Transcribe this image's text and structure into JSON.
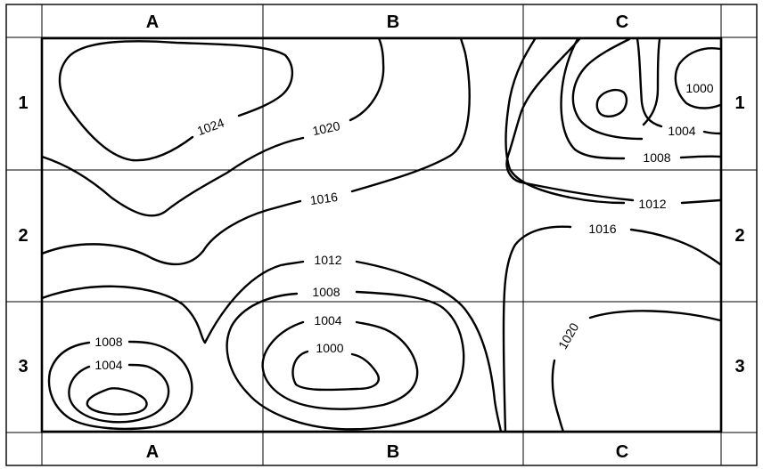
{
  "columns": [
    "A",
    "B",
    "C"
  ],
  "rows": [
    "1",
    "2",
    "3"
  ],
  "isobar_labels": {
    "a1_1024": "1024",
    "b1_1020": "1020",
    "b2_1016": "1016",
    "b2_1012": "1012",
    "b3_1008": "1008",
    "b3_1004": "1004",
    "b3_1000": "1000",
    "a3_1008": "1008",
    "a3_1004": "1004",
    "c1_1000": "1000",
    "c1_1004": "1004",
    "c1_1008": "1008",
    "c2_1012": "1012",
    "c2_1016": "1016",
    "c3_1020": "1020"
  }
}
